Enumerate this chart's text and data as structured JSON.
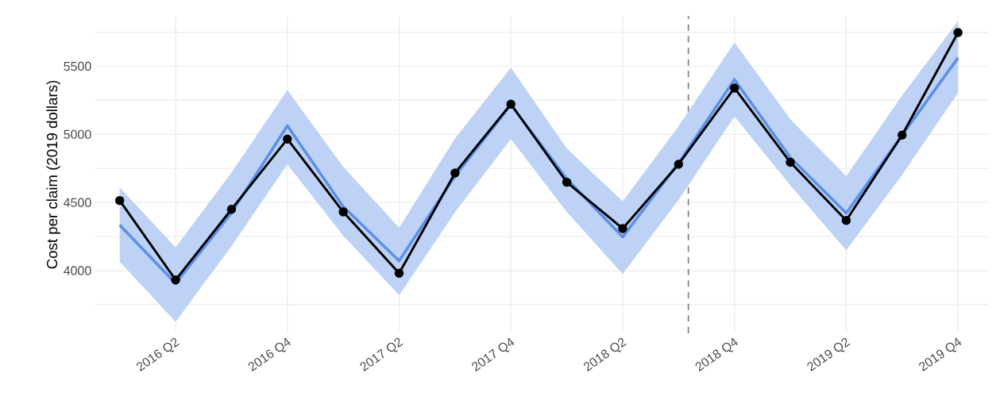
{
  "chart_data": {
    "type": "line",
    "ylabel": "Cost per claim (2019 dollars)",
    "x": [
      "2016-01",
      "2016-04",
      "2016-07",
      "2016-10",
      "2017-01",
      "2017-04",
      "2017-07",
      "2017-10",
      "2018-01",
      "2018-04",
      "2018-07",
      "2018-10",
      "2019-01",
      "2019-04",
      "2019-07",
      "2019-10"
    ],
    "series": [
      {
        "color": "#5b8fe6",
        "marker": "none",
        "values": [
          4335,
          3907,
          4425,
          5063,
          4470,
          4072,
          4694,
          5218,
          4674,
          4247,
          4790,
          5403,
          4830,
          4422,
          4995,
          5562
        ],
        "lower": [
          4065,
          3625,
          4180,
          4781,
          4256,
          3819,
          4430,
          4966,
          4431,
          3975,
          4520,
          5131,
          4626,
          4150,
          4703,
          5305
        ],
        "upper": [
          4610,
          4170,
          4720,
          5325,
          4762,
          4315,
          4970,
          5490,
          4897,
          4509,
          5060,
          5675,
          5111,
          4694,
          5286,
          5830
        ]
      },
      {
        "color": "#000000",
        "marker": "circle",
        "values": [
          4515,
          3932,
          4450,
          4966,
          4431,
          3981,
          4717,
          5222,
          4649,
          4309,
          4781,
          5340,
          4795,
          4369,
          4995,
          5748
        ]
      }
    ],
    "xlim": [
      "2015-11-22",
      "2019-11-21"
    ],
    "xticks": [
      {
        "value": "2016-04",
        "label": "2016 Q2"
      },
      {
        "value": "2016-10",
        "label": "2016 Q4"
      },
      {
        "value": "2017-04",
        "label": "2017 Q2"
      },
      {
        "value": "2017-10",
        "label": "2017 Q4"
      },
      {
        "value": "2018-04",
        "label": "2018 Q2"
      },
      {
        "value": "2018-10",
        "label": "2018 Q4"
      },
      {
        "value": "2019-04",
        "label": "2019 Q2"
      },
      {
        "value": "2019-10",
        "label": "2019 Q4"
      }
    ],
    "ylim": [
      3540,
      5870
    ],
    "yticks": [
      {
        "value": 3750,
        "label": null
      },
      4000,
      {
        "value": 4250,
        "label": null
      },
      4500,
      {
        "value": 4750,
        "label": null
      },
      5000,
      {
        "value": 5250,
        "label": null
      },
      5500,
      {
        "value": 5750,
        "label": null
      }
    ],
    "ref_lines": [
      {
        "axis": "x",
        "value": "2018-07-17",
        "color": "#808080",
        "line_style": "dashed"
      }
    ],
    "grid": true
  }
}
